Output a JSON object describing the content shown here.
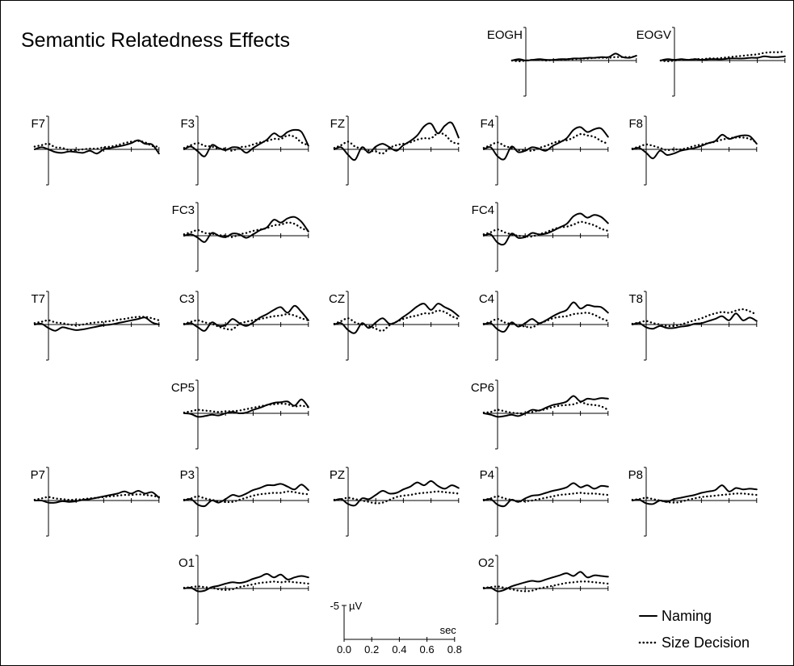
{
  "title": "Semantic Relatedness Effects",
  "colors": {
    "line": "#000000",
    "background": "#ffffff"
  },
  "chart_data": {
    "type": "line",
    "title": "Semantic Relatedness Effects",
    "x_range_sec": [
      -0.1,
      0.8
    ],
    "grid": false,
    "legend": {
      "placement": "bottom-right",
      "items": [
        {
          "name": "Naming",
          "style": "solid"
        },
        {
          "name": "Size Decision",
          "style": "dotted"
        }
      ]
    },
    "scale_bar": {
      "amplitude_label": "-5",
      "amplitude_unit": "µV",
      "time_unit": "sec",
      "tick_labels": [
        "0.0",
        "0.2",
        "0.4",
        "0.6",
        "0.8"
      ]
    },
    "x": [
      -0.1,
      -0.05,
      0.0,
      0.05,
      0.1,
      0.15,
      0.2,
      0.25,
      0.3,
      0.35,
      0.4,
      0.45,
      0.5,
      0.55,
      0.6,
      0.65,
      0.7,
      0.75,
      0.8
    ],
    "x_unit": "sec",
    "y_unit": "µV (negative up)",
    "channels": [
      {
        "label": "EOGH",
        "naming": [
          0,
          0.2,
          0,
          0.1,
          0.2,
          0.1,
          0.1,
          0.2,
          0.2,
          0.3,
          0.3,
          0.4,
          0.4,
          0.5,
          0.5,
          1.0,
          0.5,
          0.4,
          0.7
        ],
        "size_decision": [
          0,
          -0.1,
          0,
          0.1,
          0.1,
          0,
          0.1,
          0.1,
          0.2,
          0.2,
          0.3,
          0.3,
          0.4,
          0.4,
          0.4,
          0.5,
          0.5,
          0.5,
          0.6
        ]
      },
      {
        "label": "EOGV",
        "naming": [
          0,
          0.2,
          0.1,
          0.2,
          0.1,
          0.2,
          0.1,
          0.2,
          0.2,
          0.2,
          0.3,
          0.3,
          0.3,
          0.4,
          0.4,
          0.6,
          0.5,
          0.5,
          0.6
        ],
        "size_decision": [
          0,
          -0.1,
          0,
          0.1,
          0.1,
          0.2,
          0.2,
          0.3,
          0.3,
          0.4,
          0.5,
          0.6,
          0.7,
          0.8,
          0.9,
          1.1,
          1.2,
          1.2,
          1.3
        ]
      },
      {
        "label": "F7",
        "naming": [
          0,
          0.3,
          0,
          -0.4,
          -0.5,
          -0.3,
          -0.4,
          -0.5,
          -0.2,
          -0.6,
          0,
          0.2,
          0.4,
          0.6,
          0.9,
          1.3,
          0.8,
          0.7,
          -0.6
        ],
        "size_decision": [
          0.4,
          0.6,
          0.8,
          0.3,
          0.2,
          -0.1,
          -0.1,
          0,
          0.1,
          0.1,
          0.3,
          0.4,
          0.6,
          0.9,
          1.1,
          1.2,
          1.0,
          0.5,
          0.4
        ]
      },
      {
        "label": "F3",
        "naming": [
          0,
          0.4,
          -0.3,
          -1.0,
          0.6,
          0.2,
          -0.1,
          0.3,
          0.2,
          -0.5,
          0.2,
          0.8,
          1.4,
          2.3,
          1.8,
          2.5,
          2.8,
          2.5,
          0.5
        ],
        "size_decision": [
          0.2,
          0.6,
          0.9,
          0.5,
          0.4,
          0.1,
          0.1,
          -0.2,
          0.3,
          0.4,
          0.7,
          1.0,
          1.2,
          1.5,
          1.5,
          2.0,
          1.8,
          1.0,
          0.6
        ]
      },
      {
        "label": "FZ",
        "naming": [
          0,
          0.3,
          -0.8,
          -1.5,
          0.3,
          -0.5,
          0.4,
          0.8,
          0.3,
          -0.2,
          0.6,
          1.2,
          2.0,
          3.3,
          3.7,
          2.3,
          3.4,
          3.8,
          1.7
        ],
        "size_decision": [
          0.2,
          0.6,
          1.1,
          0.4,
          0.1,
          -0.2,
          -0.3,
          -0.6,
          0.2,
          0.6,
          0.8,
          1.0,
          1.4,
          1.6,
          1.6,
          2.3,
          2.1,
          1.1,
          0.8
        ]
      },
      {
        "label": "F4",
        "naming": [
          0,
          0.3,
          -1.0,
          -1.4,
          0.4,
          -0.4,
          -0.2,
          0.3,
          0.1,
          -0.2,
          0.5,
          1.0,
          1.6,
          2.8,
          3.2,
          2.5,
          2.9,
          3.0,
          1.8
        ],
        "size_decision": [
          0.2,
          0.6,
          1.0,
          0.5,
          0.2,
          -0.1,
          -0.1,
          -0.2,
          0.2,
          0.5,
          0.9,
          1.2,
          1.3,
          1.7,
          2.2,
          2.0,
          1.8,
          1.2,
          0.8
        ]
      },
      {
        "label": "F8",
        "naming": [
          0,
          0.2,
          -0.5,
          -1.3,
          -0.2,
          -0.8,
          -0.6,
          -0.2,
          0,
          0.2,
          0.5,
          0.9,
          1.2,
          2.1,
          1.5,
          1.8,
          2.0,
          1.9,
          0.8
        ],
        "size_decision": [
          0.1,
          0.4,
          0.7,
          0.5,
          0.2,
          -0.1,
          0,
          0,
          0.2,
          0.5,
          0.7,
          0.9,
          1.1,
          1.4,
          1.6,
          1.7,
          1.7,
          1.5,
          1.0
        ]
      },
      {
        "label": "FC3",
        "naming": [
          0,
          0.2,
          -0.3,
          -0.9,
          0.4,
          0,
          -0.2,
          0.3,
          0.2,
          -0.3,
          0.2,
          0.8,
          1.2,
          2.3,
          1.9,
          2.5,
          2.7,
          2.0,
          0.6
        ],
        "size_decision": [
          0.2,
          0.5,
          0.8,
          0.4,
          0.3,
          0.1,
          0,
          -0.2,
          0.2,
          0.4,
          0.7,
          0.9,
          1.1,
          1.5,
          1.6,
          1.9,
          1.7,
          1.1,
          0.7
        ]
      },
      {
        "label": "FC4",
        "naming": [
          0,
          0.2,
          -1.0,
          -1.2,
          0.3,
          -0.3,
          -0.2,
          0.4,
          0.2,
          0.3,
          0.7,
          1.2,
          1.7,
          2.8,
          3.2,
          2.6,
          3.0,
          2.7,
          1.8
        ],
        "size_decision": [
          0.2,
          0.5,
          0.9,
          0.5,
          0.2,
          0,
          -0.1,
          -0.1,
          0.2,
          0.5,
          0.9,
          1.2,
          1.3,
          1.6,
          2.0,
          1.8,
          1.5,
          1.0,
          0.7
        ]
      },
      {
        "label": "T7",
        "naming": [
          0,
          0.1,
          -0.5,
          -0.9,
          -0.4,
          -0.6,
          -0.8,
          -0.7,
          -0.5,
          -0.3,
          -0.1,
          0,
          0.2,
          0.4,
          0.6,
          0.8,
          1.0,
          0.3,
          0
        ],
        "size_decision": [
          0.2,
          0.4,
          0.6,
          0.3,
          0.2,
          0,
          -0.1,
          0,
          0.2,
          0.3,
          0.4,
          0.5,
          0.7,
          0.8,
          1.0,
          1.1,
          1.1,
          0.9,
          0.6
        ]
      },
      {
        "label": "C3",
        "naming": [
          0,
          0.2,
          -0.4,
          -0.9,
          0.3,
          -0.2,
          -0.1,
          0.8,
          0.2,
          -0.2,
          0.3,
          1.0,
          1.5,
          2.1,
          2.5,
          1.7,
          2.7,
          1.8,
          0.6
        ],
        "size_decision": [
          0.1,
          0.4,
          0.6,
          0.3,
          0.1,
          -0.3,
          -0.6,
          -0.7,
          0.1,
          0.4,
          0.6,
          0.8,
          1.0,
          1.2,
          1.3,
          1.5,
          1.3,
          0.9,
          0.6
        ]
      },
      {
        "label": "CZ",
        "naming": [
          0,
          0.2,
          -0.8,
          -1.2,
          0.2,
          -0.5,
          0.3,
          0.9,
          0.1,
          0.4,
          1.1,
          1.8,
          2.6,
          3.0,
          2.1,
          3.0,
          2.5,
          2.0,
          1.2
        ],
        "size_decision": [
          0.1,
          0.5,
          0.9,
          0.3,
          0,
          -0.2,
          -0.6,
          -0.9,
          -0.1,
          0.4,
          0.8,
          1.1,
          1.3,
          1.6,
          1.6,
          2.0,
          1.8,
          1.2,
          0.8
        ]
      },
      {
        "label": "C4",
        "naming": [
          0,
          0.2,
          -0.7,
          -1.0,
          0.3,
          -0.3,
          0.2,
          0.8,
          0.2,
          0.6,
          1.2,
          1.7,
          2.1,
          3.2,
          2.3,
          2.8,
          2.6,
          2.5,
          1.7
        ],
        "size_decision": [
          0.1,
          0.4,
          0.8,
          0.3,
          0.1,
          -0.1,
          -0.3,
          -0.4,
          0.1,
          0.5,
          0.9,
          1.1,
          1.2,
          1.5,
          1.6,
          1.7,
          1.4,
          0.9,
          0.5
        ]
      },
      {
        "label": "T8",
        "naming": [
          0,
          0.2,
          -0.4,
          -0.6,
          -0.2,
          -0.5,
          -0.5,
          -0.3,
          -0.2,
          0.1,
          0.2,
          0.5,
          0.8,
          1.2,
          0.6,
          1.6,
          0.6,
          1.0,
          0.5
        ],
        "size_decision": [
          0.1,
          0.3,
          0.5,
          0.2,
          0,
          -0.2,
          -0.2,
          0,
          0.3,
          0.6,
          0.9,
          1.3,
          1.6,
          1.8,
          1.7,
          2.0,
          2.2,
          1.9,
          1.4
        ]
      },
      {
        "label": "CP5",
        "naming": [
          0,
          -0.1,
          -0.5,
          -0.4,
          -0.2,
          -0.3,
          0,
          0.2,
          0,
          0.1,
          0.5,
          0.8,
          1.2,
          1.5,
          1.6,
          1.7,
          1.1,
          2.0,
          0.9
        ],
        "size_decision": [
          0.1,
          0.3,
          0.5,
          0.4,
          0.3,
          0.2,
          0.3,
          0.3,
          0.4,
          0.6,
          0.8,
          1.0,
          1.2,
          1.3,
          1.4,
          1.3,
          1.0,
          1.1,
          0.9
        ]
      },
      {
        "label": "CP6",
        "naming": [
          0,
          -0.2,
          -0.5,
          -0.4,
          -0.2,
          -0.4,
          0,
          0.5,
          0.4,
          0.8,
          1.2,
          1.4,
          1.7,
          2.5,
          1.7,
          2.1,
          2.0,
          2.2,
          2.1
        ],
        "size_decision": [
          0.1,
          0.2,
          0.5,
          0.3,
          0.1,
          0,
          0,
          0.2,
          0.4,
          0.6,
          0.9,
          1.1,
          1.2,
          1.3,
          1.6,
          1.3,
          1.2,
          1.0,
          0.5
        ]
      },
      {
        "label": "P7",
        "naming": [
          0,
          0,
          -0.3,
          -0.3,
          -0.1,
          -0.2,
          -0.1,
          0.1,
          0.2,
          0.4,
          0.6,
          0.8,
          1.0,
          1.3,
          1.0,
          1.4,
          1.0,
          1.2,
          0.4
        ],
        "size_decision": [
          0.1,
          0.3,
          0.5,
          0.3,
          0.2,
          0.1,
          0.1,
          0.2,
          0.3,
          0.4,
          0.5,
          0.6,
          0.7,
          0.8,
          0.8,
          0.9,
          0.8,
          0.7,
          0.5
        ]
      },
      {
        "label": "P3",
        "naming": [
          0,
          0.2,
          -0.6,
          -0.8,
          0,
          -0.3,
          0.2,
          0.8,
          0.6,
          1.0,
          1.5,
          1.8,
          2.2,
          2.2,
          2.4,
          2.0,
          1.6,
          2.3,
          1.5
        ],
        "size_decision": [
          0.1,
          0.3,
          0.6,
          0.3,
          0.1,
          -0.1,
          -0.2,
          -0.2,
          0.1,
          0.4,
          0.7,
          0.9,
          1.0,
          1.1,
          1.1,
          1.3,
          1.2,
          1.0,
          0.9
        ]
      },
      {
        "label": "PZ",
        "naming": [
          0,
          0.2,
          -0.5,
          -0.7,
          0.3,
          0.2,
          0.8,
          1.4,
          1.0,
          1.1,
          1.6,
          2.0,
          2.6,
          2.2,
          2.8,
          2.1,
          1.7,
          2.2,
          1.8
        ],
        "size_decision": [
          0.1,
          0.2,
          0.4,
          0.2,
          0,
          -0.2,
          -0.4,
          -0.3,
          0.1,
          0.5,
          0.7,
          0.8,
          1.0,
          1.1,
          1.2,
          1.3,
          1.2,
          1.1,
          1.0
        ]
      },
      {
        "label": "P4",
        "naming": [
          0,
          0.2,
          -0.6,
          -0.8,
          0.1,
          -0.2,
          0.3,
          0.7,
          0.8,
          1.1,
          1.4,
          1.6,
          1.9,
          2.5,
          1.9,
          2.2,
          1.7,
          2.1,
          2.0
        ],
        "size_decision": [
          0.1,
          0.3,
          0.6,
          0.3,
          0.1,
          -0.1,
          -0.1,
          0,
          0.2,
          0.4,
          0.6,
          0.8,
          0.9,
          1.0,
          1.1,
          1.0,
          1.0,
          0.9,
          0.8
        ]
      },
      {
        "label": "P8",
        "naming": [
          0,
          0.1,
          -0.4,
          -0.5,
          0,
          -0.2,
          0.2,
          0.4,
          0.6,
          0.8,
          1.1,
          1.3,
          1.5,
          2.2,
          1.3,
          1.8,
          1.6,
          1.7,
          1.6
        ],
        "size_decision": [
          0.1,
          0.2,
          0.4,
          0.2,
          0,
          -0.2,
          -0.3,
          -0.2,
          0.1,
          0.3,
          0.5,
          0.6,
          0.7,
          0.8,
          0.9,
          1.0,
          1.0,
          0.9,
          0.8
        ]
      },
      {
        "label": "O1",
        "naming": [
          0,
          0.1,
          -0.4,
          -0.3,
          0.2,
          0.4,
          0.7,
          0.9,
          0.8,
          1.0,
          1.4,
          1.7,
          2.1,
          1.6,
          2.0,
          1.3,
          1.6,
          1.8,
          1.6
        ],
        "size_decision": [
          0.1,
          0.2,
          0.3,
          0.2,
          0.1,
          -0.1,
          -0.2,
          -0.1,
          0.2,
          0.4,
          0.6,
          0.8,
          0.9,
          1.0,
          0.9,
          1.0,
          0.9,
          0.8,
          0.7
        ]
      },
      {
        "label": "O2",
        "naming": [
          0,
          0.1,
          -0.4,
          -0.2,
          0.3,
          0.6,
          0.9,
          1.1,
          1.0,
          1.3,
          1.6,
          1.9,
          2.2,
          1.8,
          2.4,
          1.6,
          1.9,
          1.8,
          1.7
        ],
        "size_decision": [
          0.1,
          0.2,
          0.3,
          0.1,
          -0.1,
          -0.3,
          -0.4,
          -0.3,
          0,
          0.2,
          0.4,
          0.6,
          0.8,
          0.9,
          1.0,
          1.0,
          0.9,
          0.8,
          0.7
        ]
      }
    ]
  }
}
